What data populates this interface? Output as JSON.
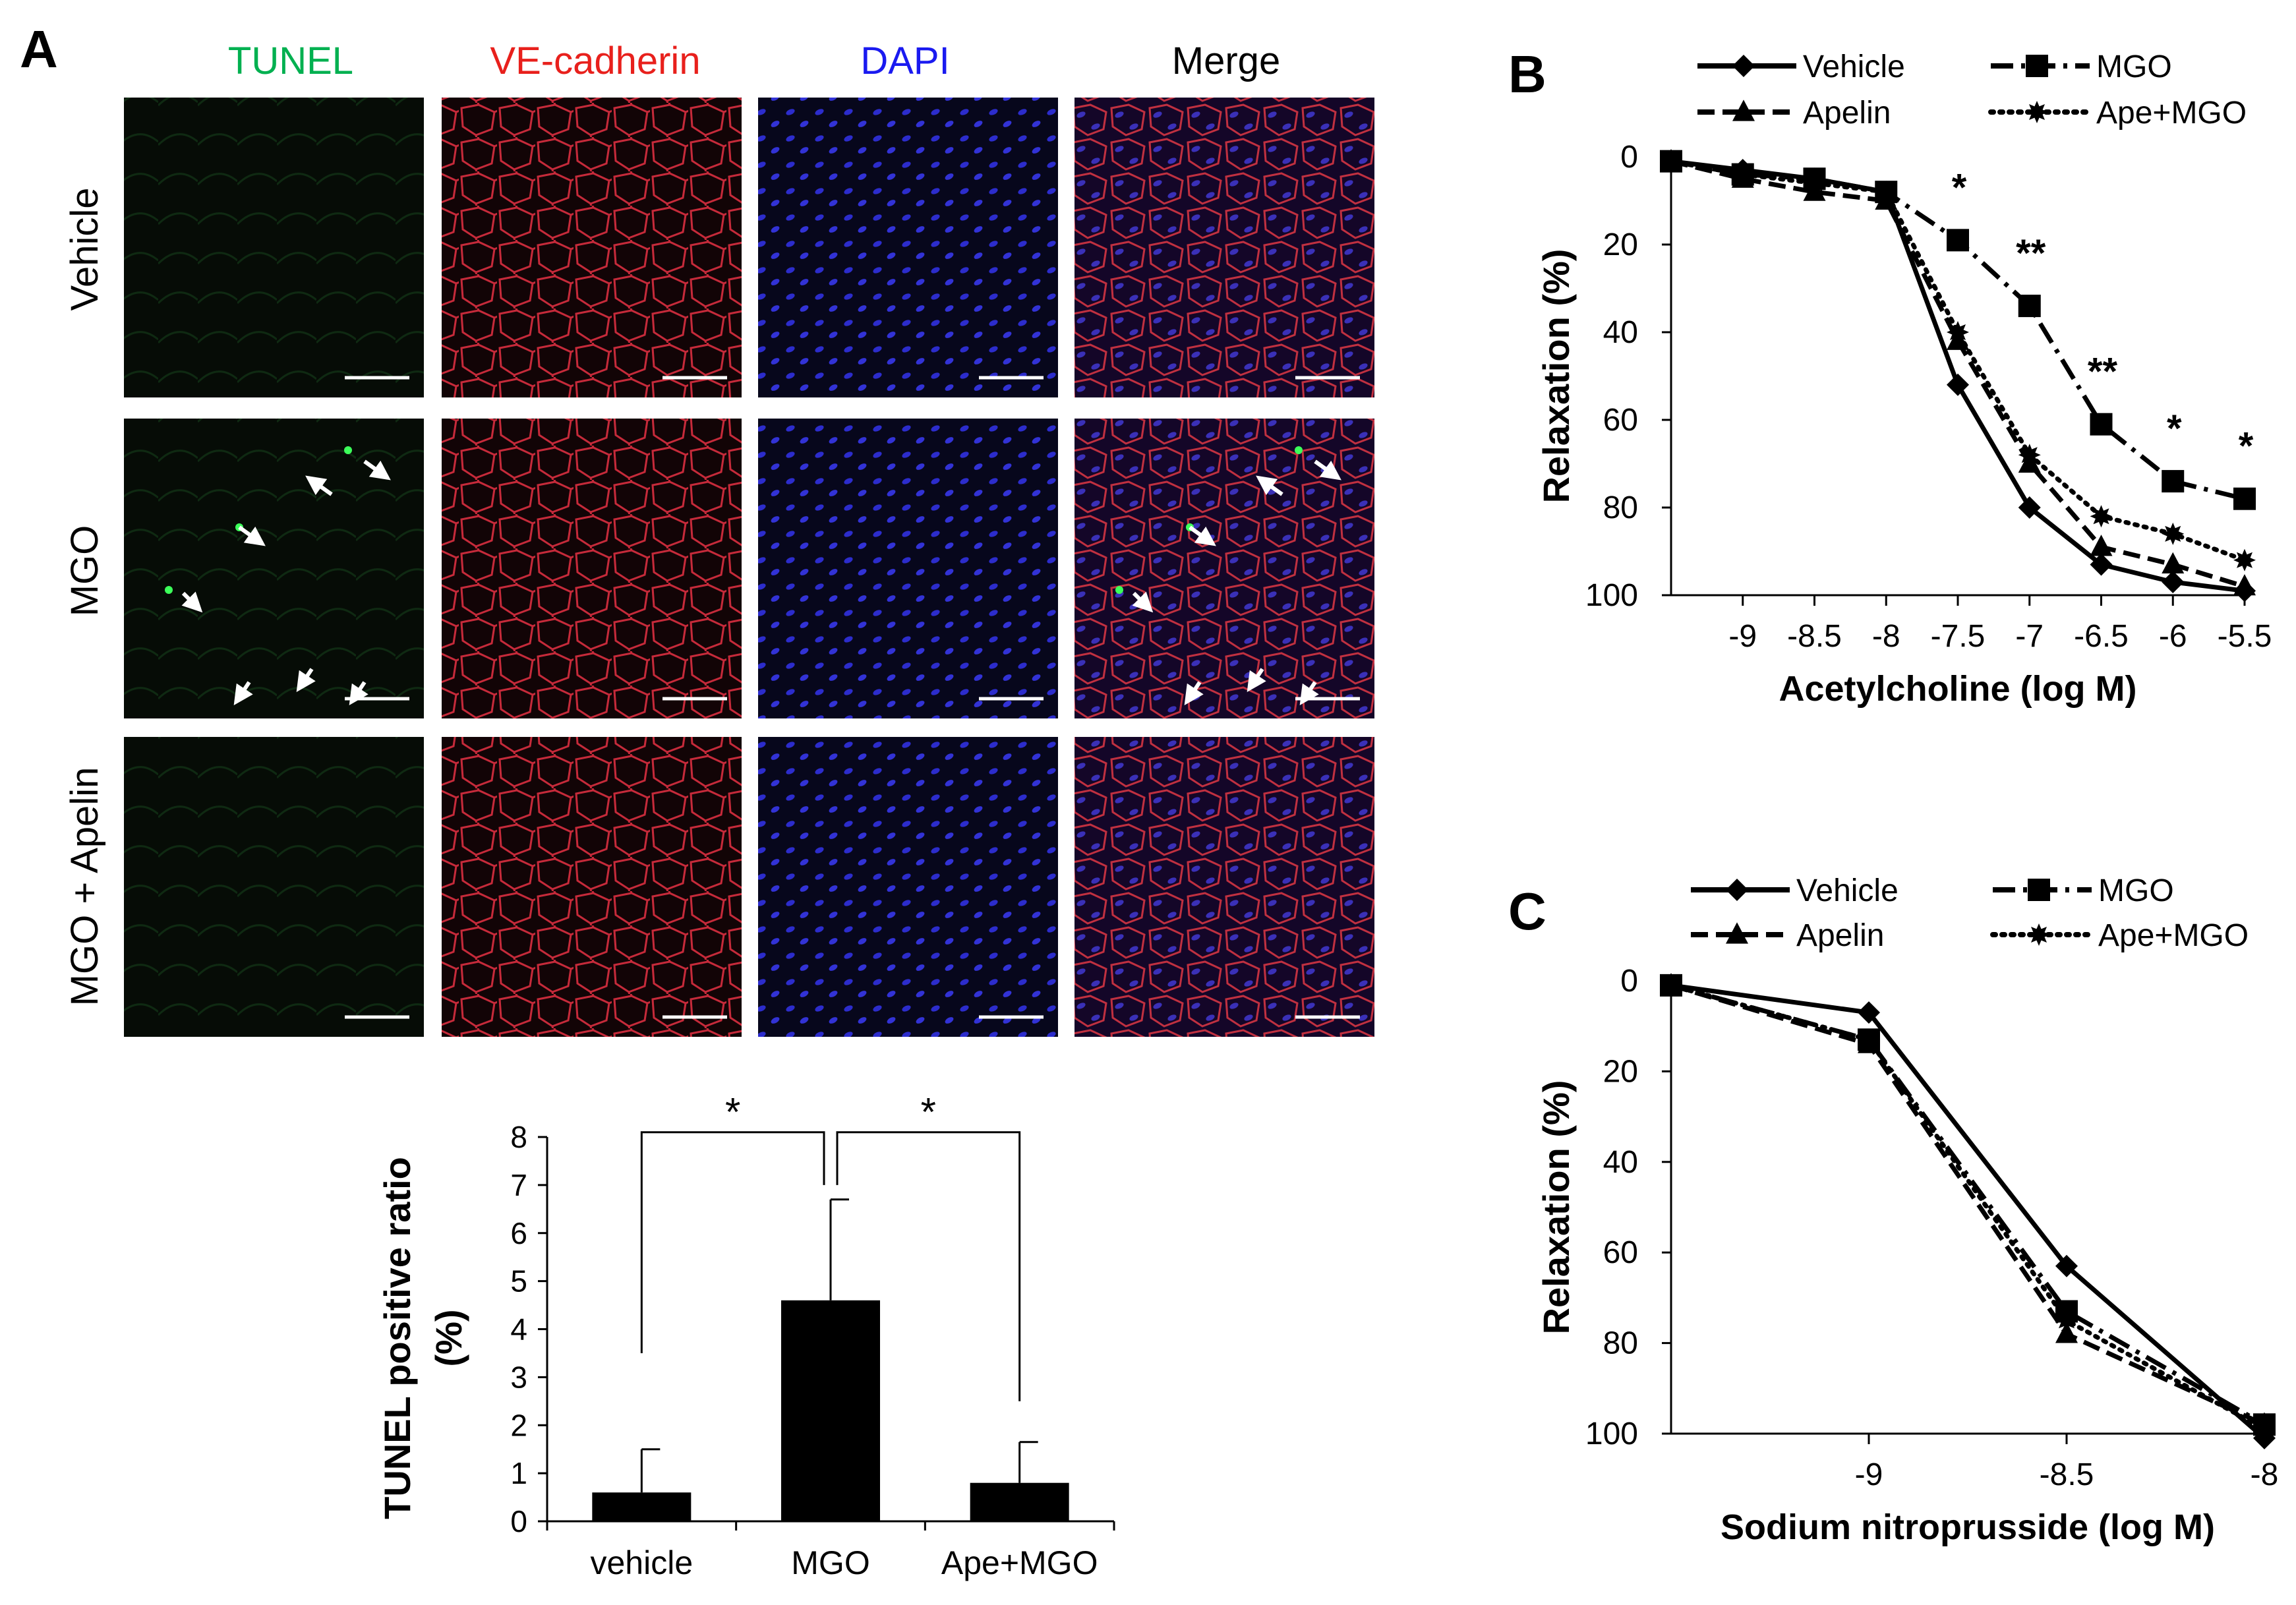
{
  "panel_a": {
    "label": "A",
    "columns": [
      {
        "text": "TUNEL",
        "color": "#00b050"
      },
      {
        "text": "VE-cadherin",
        "color": "#e8201c"
      },
      {
        "text": "DAPI",
        "color": "#1a1af0"
      },
      {
        "text": "Merge",
        "color": "#000000"
      }
    ],
    "rows": [
      "Vehicle",
      "MGO",
      "MGO + Apelin"
    ],
    "bar_chart": {
      "type": "bar",
      "categories": [
        "vehicle",
        "MGO",
        "Ape+MGO"
      ],
      "values": [
        0.6,
        4.6,
        0.8
      ],
      "errors": [
        0.9,
        2.1,
        0.85
      ],
      "ylabel_line1": "TUNEL positive ratio",
      "ylabel_line2": "(%)",
      "ylim": [
        0,
        8
      ],
      "yticks": [
        "0",
        "1",
        "2",
        "3",
        "4",
        "5",
        "6",
        "7",
        "8"
      ],
      "significance": [
        "*",
        "*"
      ]
    }
  },
  "chart_data": [
    {
      "type": "line",
      "panel": "B",
      "xlabel": "Acetylcholine (log M)",
      "ylabel": "Relaxation (%)",
      "xticks": [
        "-9",
        "-8.5",
        "-8",
        "-7.5",
        "-7",
        "-6.5",
        "-6",
        "-5.5"
      ],
      "yticks": [
        "0",
        "20",
        "40",
        "60",
        "80",
        "100"
      ],
      "ylim": [
        0,
        100
      ],
      "y_inverted": true,
      "x": [
        -9.5,
        -9,
        -8.5,
        -8,
        -7.5,
        -7,
        -6.5,
        -6,
        -5.5
      ],
      "series": [
        {
          "name": "Vehicle",
          "marker": "diamond",
          "line": "solid",
          "values": [
            1,
            3,
            5,
            8,
            52,
            80,
            93,
            97,
            99
          ]
        },
        {
          "name": "MGO",
          "marker": "square",
          "line": "dashdot",
          "values": [
            1,
            4,
            5,
            8,
            19,
            34,
            61,
            74,
            78
          ],
          "significance": [
            "",
            "",
            "",
            "",
            "*",
            "**",
            "**",
            "*",
            "*"
          ]
        },
        {
          "name": "Apelin",
          "marker": "triangle",
          "line": "dash",
          "values": [
            1,
            5,
            8,
            10,
            42,
            70,
            89,
            93,
            98
          ]
        },
        {
          "name": "Ape+MGO",
          "marker": "star",
          "line": "dotted",
          "values": [
            1,
            4,
            6,
            8,
            40,
            68,
            82,
            86,
            92
          ]
        }
      ]
    },
    {
      "type": "line",
      "panel": "C",
      "xlabel": "Sodium nitroprusside (log M)",
      "ylabel": "Relaxation (%)",
      "xticks": [
        "-9",
        "-8.5",
        "-8"
      ],
      "yticks": [
        "0",
        "20",
        "40",
        "60",
        "80",
        "100"
      ],
      "ylim": [
        0,
        100
      ],
      "y_inverted": true,
      "x": [
        -9.5,
        -9,
        -8.5,
        -8
      ],
      "series": [
        {
          "name": "Vehicle",
          "marker": "diamond",
          "line": "solid",
          "values": [
            1,
            7,
            63,
            101
          ]
        },
        {
          "name": "MGO",
          "marker": "square",
          "line": "dashdot",
          "values": [
            1,
            13,
            73,
            98
          ]
        },
        {
          "name": "Apelin",
          "marker": "triangle",
          "line": "dash",
          "values": [
            1,
            14,
            78,
            98
          ]
        },
        {
          "name": "Ape+MGO",
          "marker": "star",
          "line": "dotted",
          "values": [
            1,
            13,
            75,
            99
          ]
        }
      ]
    }
  ]
}
